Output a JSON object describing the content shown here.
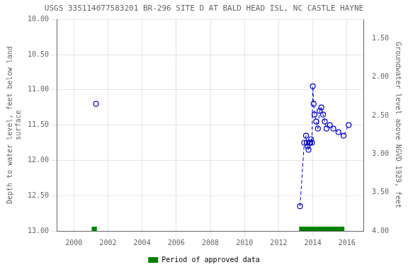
{
  "chart_data": {
    "type": "scatter",
    "title": "USGS 335114077583201 BR-296 SITE D AT BALD HEAD ISL, NC CASTLE HAYNE",
    "ylabel": "Depth to water level, feet below land\nsurface",
    "y2label": "Groundwater level above NGVD 1929, feet",
    "x": [
      2001.3,
      2013.25,
      2013.5,
      2013.6,
      2013.65,
      2013.7,
      2013.75,
      2013.8,
      2013.85,
      2013.9,
      2013.95,
      2014.0,
      2014.05,
      2014.1,
      2014.2,
      2014.3,
      2014.4,
      2014.5,
      2014.6,
      2014.7,
      2014.8,
      2015.0,
      2015.2,
      2015.5,
      2015.8,
      2016.1
    ],
    "series": [
      {
        "color": "#0000cc",
        "marker": "open_circle",
        "line_style": "none",
        "values": [
          11.2,
          12.65,
          11.75,
          11.65,
          11.75,
          11.8,
          11.85,
          11.75,
          11.75,
          11.7,
          11.75,
          10.95,
          11.2,
          11.35,
          11.45,
          11.55,
          11.3,
          11.25,
          11.35,
          11.45,
          11.55,
          11.5,
          11.55,
          11.6,
          11.65,
          11.5
        ]
      },
      {
        "color": "#0000cc",
        "marker": "none",
        "line_style": "dashed",
        "values": [
          null,
          12.65,
          11.75,
          11.65,
          11.75,
          11.8,
          11.85,
          11.75,
          11.75,
          11.7,
          11.75,
          10.95,
          11.2,
          11.35,
          11.45,
          11.55,
          11.3,
          11.25,
          11.35,
          11.45,
          11.55,
          11.5,
          11.55,
          11.6,
          11.65,
          11.5
        ]
      }
    ],
    "approved_periods": {
      "name": "Period of approved data",
      "color": "#008000",
      "periods": [
        [
          2001.05,
          2001.35
        ],
        [
          2013.2,
          2015.85
        ]
      ]
    },
    "xlim": [
      1999,
      2017
    ],
    "xticks": [
      2000,
      2002,
      2004,
      2006,
      2008,
      2010,
      2012,
      2014,
      2016
    ],
    "ylim": [
      13.0,
      10.0
    ],
    "yticks": [
      {
        "value": 10.0,
        "label": "10.00"
      },
      {
        "value": 10.5,
        "label": "10.50"
      },
      {
        "value": 11.0,
        "label": "11.00"
      },
      {
        "value": 11.5,
        "label": "11.50"
      },
      {
        "value": 12.0,
        "label": "12.00"
      },
      {
        "value": 12.5,
        "label": "12.50"
      },
      {
        "value": 13.0,
        "label": "13.00"
      }
    ],
    "y2lim": [
      4.0,
      1.25
    ],
    "y2ticks": [
      {
        "value": 4.0,
        "label": "4.00"
      },
      {
        "value": 3.5,
        "label": "3.50"
      },
      {
        "value": 3.0,
        "label": "3.00"
      },
      {
        "value": 2.5,
        "label": "2.50"
      },
      {
        "value": 2.0,
        "label": "2.00"
      },
      {
        "value": 1.5,
        "label": "1.50"
      }
    ],
    "grid": true,
    "legend": "bottom"
  }
}
